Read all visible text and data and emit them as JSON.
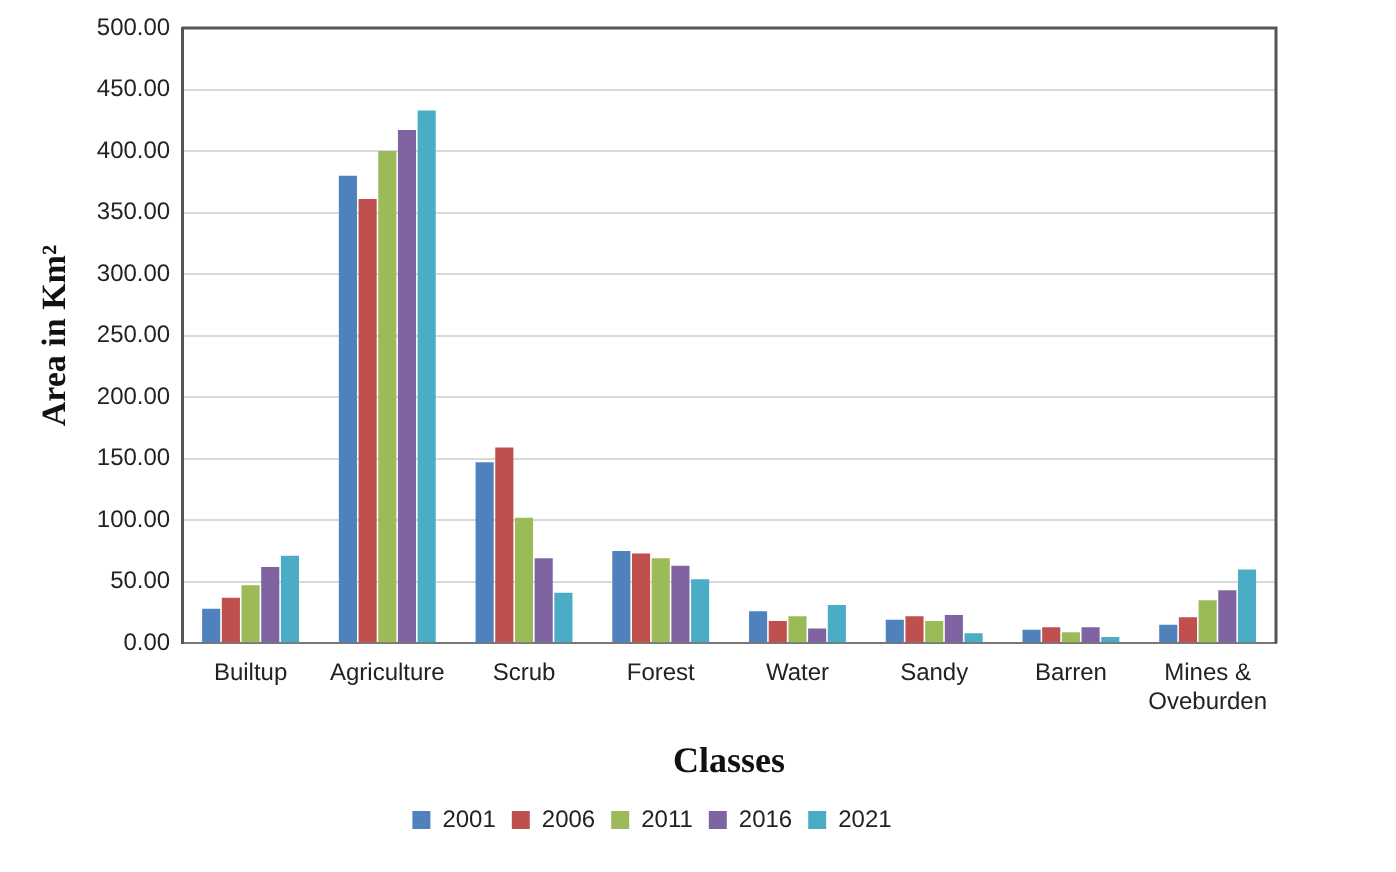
{
  "chart_data": {
    "type": "bar",
    "xlabel": "Classes",
    "ylabel": "Area in Km²",
    "categories": [
      "Builtup",
      "Agriculture",
      "Scrub",
      "Forest",
      "Water",
      "Sandy",
      "Barren",
      "Mines & Oveburden"
    ],
    "series": [
      {
        "name": "2001",
        "color": "#4f81bd",
        "values": [
          28,
          380,
          147,
          75,
          26,
          19,
          11,
          15
        ]
      },
      {
        "name": "2006",
        "color": "#c0504d",
        "values": [
          37,
          361,
          159,
          73,
          18,
          22,
          13,
          21
        ]
      },
      {
        "name": "2011",
        "color": "#9bbb59",
        "values": [
          47,
          400,
          102,
          69,
          22,
          18,
          9,
          35
        ]
      },
      {
        "name": "2016",
        "color": "#8064a2",
        "values": [
          62,
          417,
          69,
          63,
          12,
          23,
          13,
          43
        ]
      },
      {
        "name": "2021",
        "color": "#4bacc6",
        "values": [
          71,
          433,
          41,
          52,
          31,
          8,
          5,
          60
        ]
      }
    ],
    "ylim": [
      0,
      500
    ],
    "yticks": [
      {
        "value": 0,
        "label": "0.00"
      },
      {
        "value": 50,
        "label": "50.00"
      },
      {
        "value": 100,
        "label": "100.00"
      },
      {
        "value": 150,
        "label": "150.00"
      },
      {
        "value": 200,
        "label": "200.00"
      },
      {
        "value": 250,
        "label": "250.00"
      },
      {
        "value": 300,
        "label": "300.00"
      },
      {
        "value": 350,
        "label": "350.00"
      },
      {
        "value": 400,
        "label": "400.00"
      },
      {
        "value": 450,
        "label": "450.00"
      },
      {
        "value": 500,
        "label": "500.00"
      }
    ],
    "grid": "y",
    "legend": "bottom"
  }
}
